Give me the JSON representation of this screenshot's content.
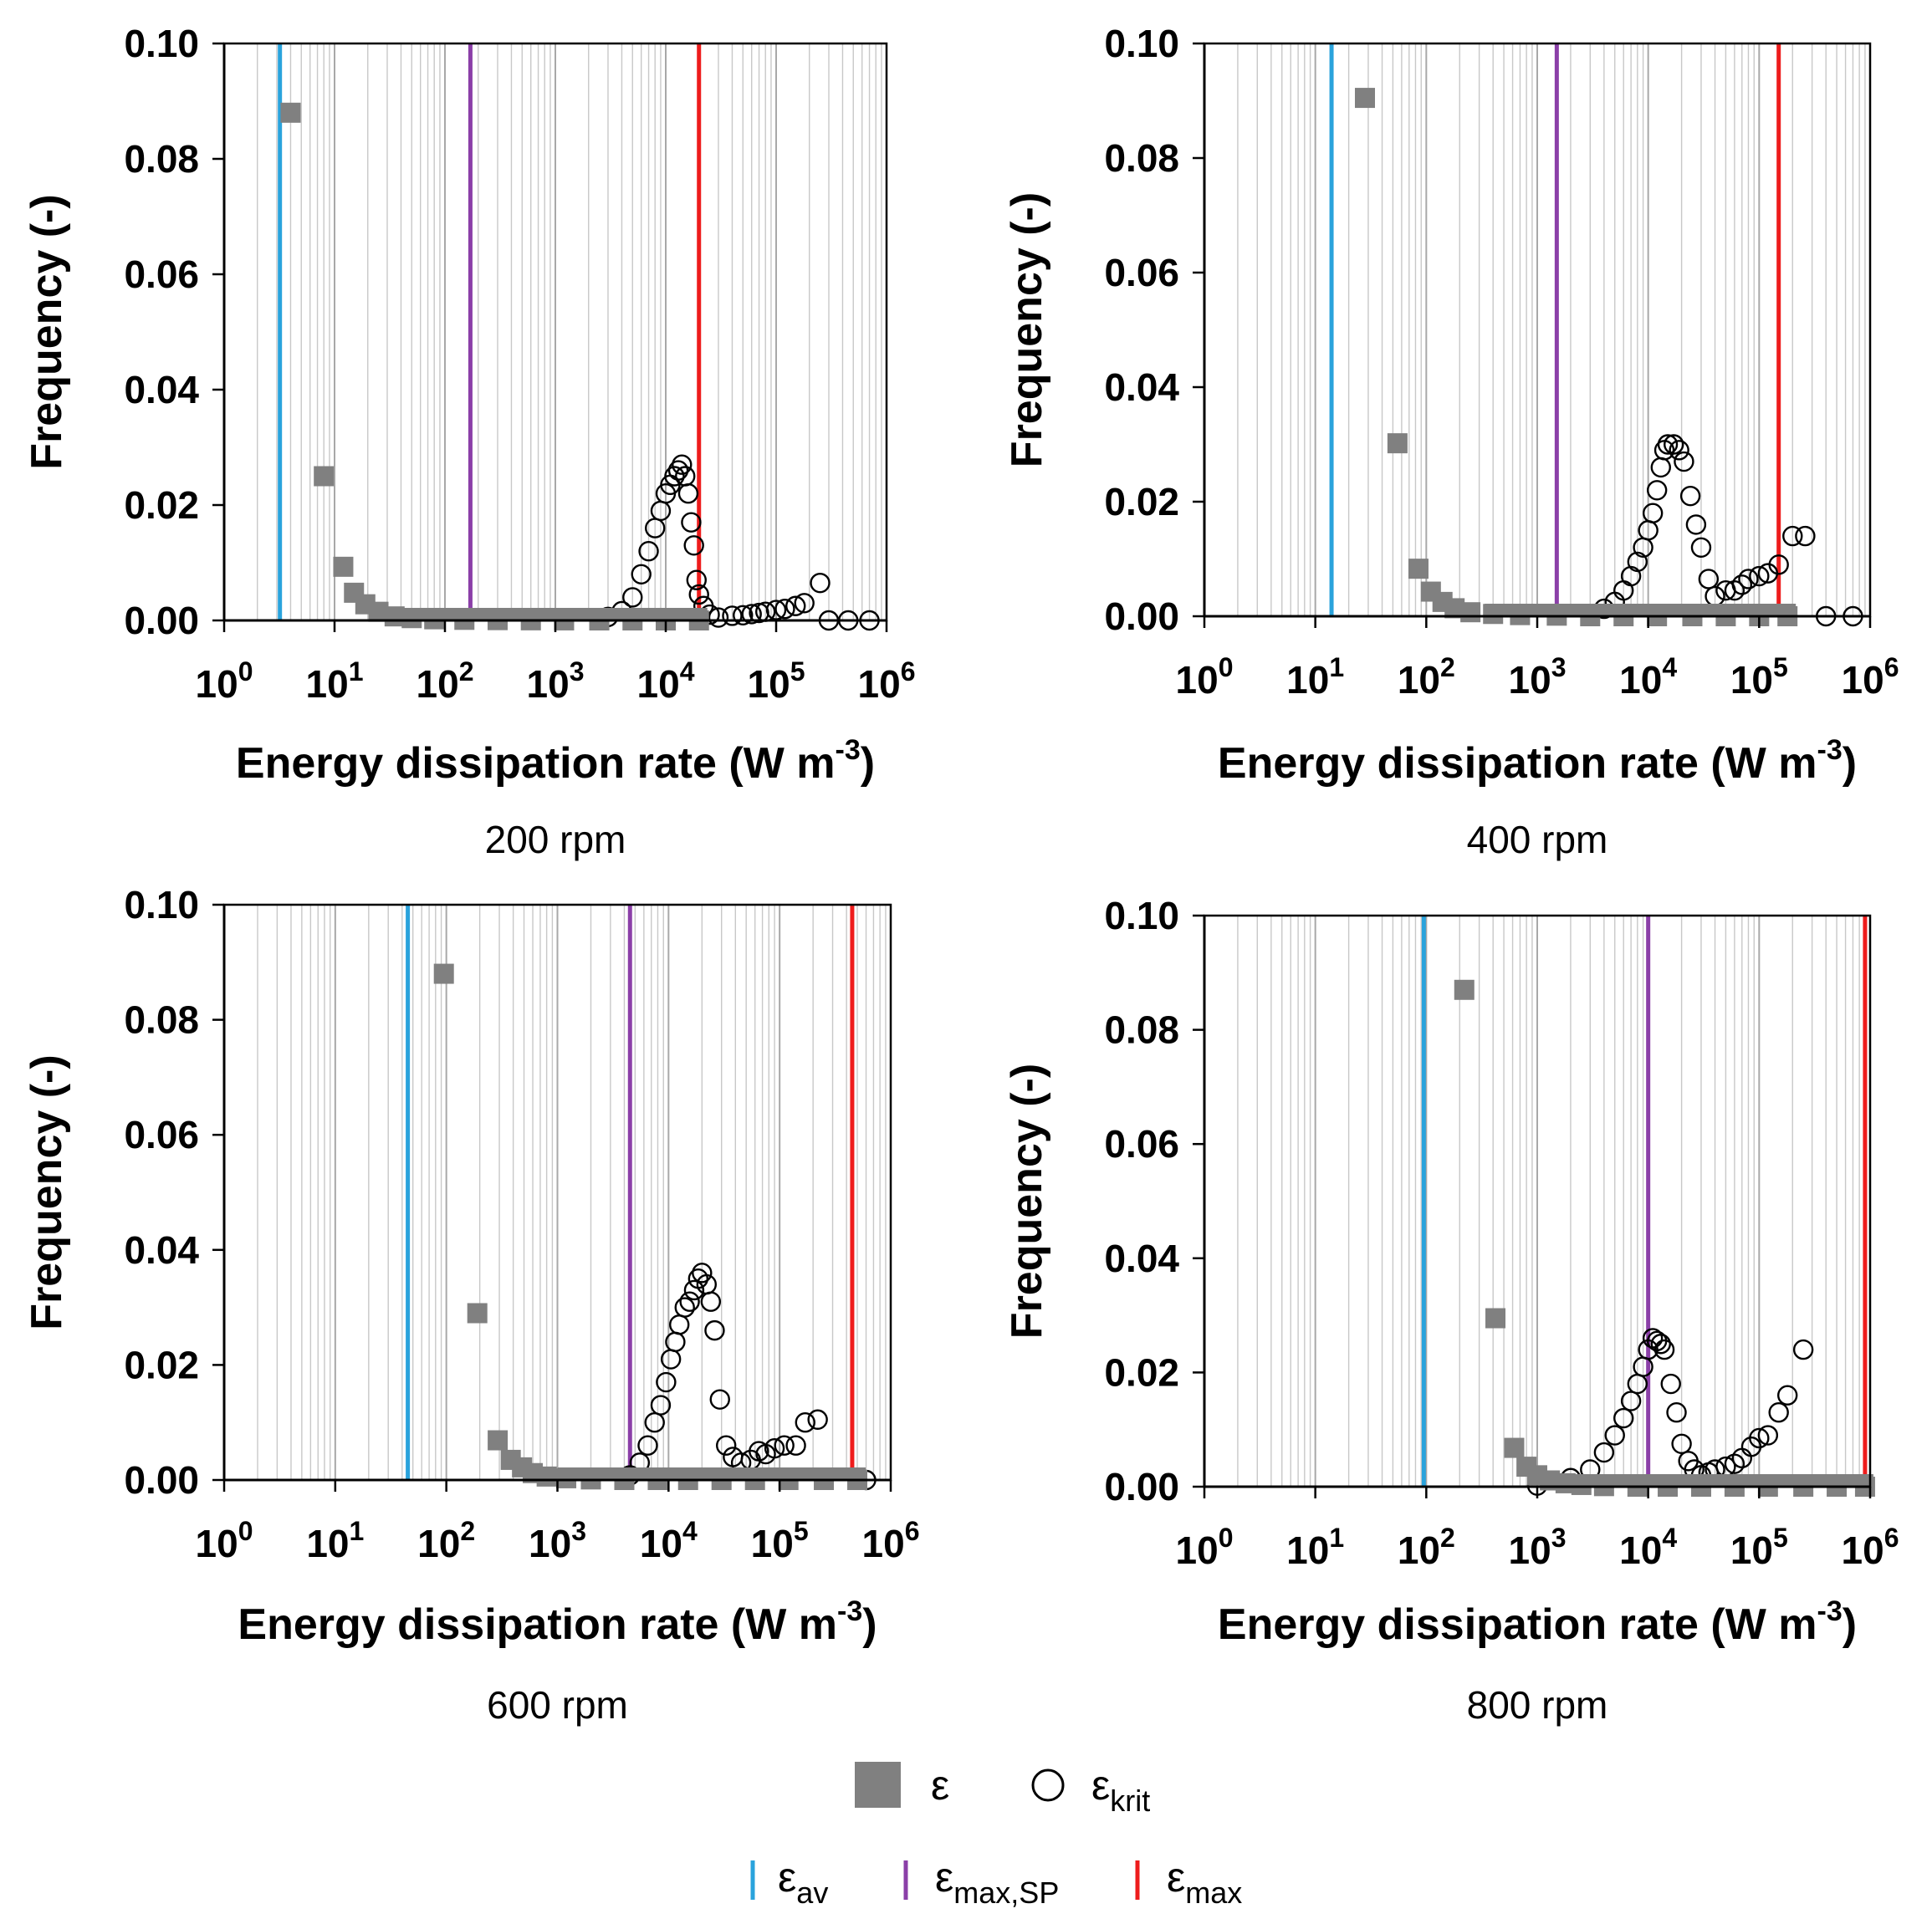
{
  "colors": {
    "epsilon": "#808080",
    "eps_krit": "#000000",
    "eps_av": "#2aa3dc",
    "eps_max_sp": "#8b3fa8",
    "eps_max": "#ee1c1c",
    "grid": "#c8c8c8"
  },
  "legend": {
    "epsilon": {
      "symbol": "ε",
      "sub": ""
    },
    "eps_krit": {
      "symbol": "ε",
      "sub": "krit"
    },
    "eps_av": {
      "symbol": "ε",
      "sub": "av"
    },
    "eps_max_sp": {
      "symbol": "ε",
      "sub": "max,SP"
    },
    "eps_max": {
      "symbol": "ε",
      "sub": "max"
    }
  },
  "chart_data": [
    {
      "type": "scatter",
      "title": "200 rpm",
      "xlabel": "Energy dissipation rate (W m-3)",
      "ylabel": "Frequency (-)",
      "xscale": "log",
      "xlim": [
        1,
        1000000
      ],
      "ylim": [
        0,
        0.1
      ],
      "x_tick_labels": [
        {
          "base": "10",
          "exp": "0"
        },
        {
          "base": "10",
          "exp": "1"
        },
        {
          "base": "10",
          "exp": "2"
        },
        {
          "base": "10",
          "exp": "3"
        },
        {
          "base": "10",
          "exp": "4"
        },
        {
          "base": "10",
          "exp": "5"
        },
        {
          "base": "10",
          "exp": "6"
        }
      ],
      "y_tick_labels": [
        "0.00",
        "0.02",
        "0.04",
        "0.06",
        "0.08",
        "0.10"
      ],
      "vlines": {
        "eps_av": 3.2,
        "eps_max_sp": 170,
        "eps_max": 20000
      },
      "series": [
        {
          "name": "ε",
          "marker": "square",
          "x": [
            4,
            8,
            12,
            15,
            19,
            25,
            35,
            50,
            80,
            150,
            300,
            600,
            1200,
            2500,
            5000,
            10000,
            20000
          ],
          "y": [
            0.088,
            0.025,
            0.0093,
            0.0048,
            0.0028,
            0.0015,
            0.0007,
            0.0004,
            0.0002,
            0.0001,
            5e-05,
            2e-05,
            1e-05,
            0,
            0,
            0,
            0
          ]
        },
        {
          "name": "ε_krit",
          "marker": "circle",
          "x": [
            3000,
            4000,
            5000,
            6000,
            7000,
            8000,
            9000,
            10000,
            11000,
            12000,
            13000,
            14000,
            15000,
            16000,
            17000,
            18000,
            19000,
            20000,
            22000,
            25000,
            30000,
            40000,
            50000,
            60000,
            70000,
            80000,
            100000,
            120000,
            150000,
            180000,
            250000,
            300000,
            450000,
            700000
          ],
          "y": [
            0.0006,
            0.0016,
            0.004,
            0.008,
            0.012,
            0.016,
            0.019,
            0.022,
            0.0235,
            0.025,
            0.026,
            0.027,
            0.025,
            0.022,
            0.017,
            0.013,
            0.007,
            0.0045,
            0.0025,
            0.001,
            0.0005,
            0.0008,
            0.0009,
            0.0011,
            0.0013,
            0.0015,
            0.0018,
            0.002,
            0.0025,
            0.003,
            0.0065,
            0,
            0,
            0
          ]
        }
      ]
    },
    {
      "type": "scatter",
      "title": "400 rpm",
      "xlabel": "Energy dissipation rate (W m-3)",
      "ylabel": "Frequency (-)",
      "xscale": "log",
      "xlim": [
        1,
        1000000
      ],
      "ylim": [
        0,
        0.1
      ],
      "x_tick_labels": [
        {
          "base": "10",
          "exp": "0"
        },
        {
          "base": "10",
          "exp": "1"
        },
        {
          "base": "10",
          "exp": "2"
        },
        {
          "base": "10",
          "exp": "3"
        },
        {
          "base": "10",
          "exp": "4"
        },
        {
          "base": "10",
          "exp": "5"
        },
        {
          "base": "10",
          "exp": "6"
        }
      ],
      "y_tick_labels": [
        "0.00",
        "0.02",
        "0.04",
        "0.06",
        "0.08",
        "0.10"
      ],
      "vlines": {
        "eps_av": 14,
        "eps_max_sp": 1500,
        "eps_max": 150000
      },
      "series": [
        {
          "name": "ε",
          "marker": "square",
          "x": [
            28,
            55,
            85,
            110,
            140,
            180,
            250,
            400,
            700,
            1500,
            3000,
            6000,
            12000,
            25000,
            50000,
            100000,
            180000
          ],
          "y": [
            0.0905,
            0.0302,
            0.0083,
            0.0043,
            0.0025,
            0.0014,
            0.0007,
            0.0004,
            0.0002,
            0.0001,
            0,
            0,
            0,
            0,
            0,
            0,
            0
          ]
        },
        {
          "name": "ε_krit",
          "marker": "circle",
          "x": [
            4000,
            5000,
            6000,
            7000,
            8000,
            9000,
            10000,
            11000,
            12000,
            13000,
            14000,
            15000,
            17000,
            19000,
            21000,
            24000,
            27000,
            30000,
            35000,
            40000,
            50000,
            60000,
            70000,
            80000,
            100000,
            120000,
            150000,
            200000,
            260000,
            400000,
            700000
          ],
          "y": [
            0.0013,
            0.0025,
            0.0045,
            0.007,
            0.0095,
            0.012,
            0.015,
            0.018,
            0.022,
            0.026,
            0.029,
            0.03,
            0.03,
            0.029,
            0.027,
            0.021,
            0.016,
            0.012,
            0.0065,
            0.0035,
            0.0045,
            0.0045,
            0.0055,
            0.0065,
            0.007,
            0.0075,
            0.009,
            0.014,
            0.014,
            0,
            0
          ]
        }
      ]
    },
    {
      "type": "scatter",
      "title": "600 rpm",
      "xlabel": "Energy dissipation rate (W m-3)",
      "ylabel": "Frequency (-)",
      "xscale": "log",
      "xlim": [
        1,
        1000000
      ],
      "ylim": [
        0,
        0.1
      ],
      "x_tick_labels": [
        {
          "base": "10",
          "exp": "0"
        },
        {
          "base": "10",
          "exp": "1"
        },
        {
          "base": "10",
          "exp": "2"
        },
        {
          "base": "10",
          "exp": "3"
        },
        {
          "base": "10",
          "exp": "4"
        },
        {
          "base": "10",
          "exp": "5"
        },
        {
          "base": "10",
          "exp": "6"
        }
      ],
      "y_tick_labels": [
        "0.00",
        "0.02",
        "0.04",
        "0.06",
        "0.08",
        "0.10"
      ],
      "vlines": {
        "eps_av": 45,
        "eps_max_sp": 4500,
        "eps_max": 450000
      },
      "series": [
        {
          "name": "ε",
          "marker": "square",
          "x": [
            95,
            190,
            290,
            380,
            480,
            600,
            800,
            1200,
            2000,
            4000,
            8000,
            15000,
            30000,
            60000,
            120000,
            250000,
            500000
          ],
          "y": [
            0.088,
            0.029,
            0.0069,
            0.0035,
            0.0022,
            0.0012,
            0.0006,
            0.0003,
            0.0001,
            0,
            0,
            0,
            0,
            0,
            0,
            0,
            0
          ]
        },
        {
          "name": "ε_krit",
          "marker": "circle",
          "x": [
            4500,
            5500,
            6500,
            7500,
            8500,
            9500,
            10500,
            11500,
            12500,
            14000,
            15500,
            17000,
            18500,
            20000,
            22000,
            24000,
            26000,
            29000,
            33000,
            38000,
            45000,
            55000,
            65000,
            75000,
            90000,
            110000,
            140000,
            170000,
            220000,
            600000
          ],
          "y": [
            0.0008,
            0.003,
            0.006,
            0.01,
            0.013,
            0.017,
            0.021,
            0.024,
            0.027,
            0.03,
            0.031,
            0.033,
            0.035,
            0.036,
            0.034,
            0.031,
            0.026,
            0.014,
            0.006,
            0.004,
            0.003,
            0.0035,
            0.005,
            0.0045,
            0.0055,
            0.006,
            0.006,
            0.01,
            0.0105,
            0
          ]
        }
      ]
    },
    {
      "type": "scatter",
      "title": "800 rpm",
      "xlabel": "Energy dissipation rate (W m-3)",
      "ylabel": "Frequency (-)",
      "xscale": "log",
      "xlim": [
        1,
        1000000
      ],
      "ylim": [
        0,
        0.1
      ],
      "x_tick_labels": [
        {
          "base": "10",
          "exp": "0"
        },
        {
          "base": "10",
          "exp": "1"
        },
        {
          "base": "10",
          "exp": "2"
        },
        {
          "base": "10",
          "exp": "3"
        },
        {
          "base": "10",
          "exp": "4"
        },
        {
          "base": "10",
          "exp": "5"
        },
        {
          "base": "10",
          "exp": "6"
        }
      ],
      "y_tick_labels": [
        "0.00",
        "0.02",
        "0.04",
        "0.06",
        "0.08",
        "0.10"
      ],
      "vlines": {
        "eps_av": 95,
        "eps_max_sp": 10000,
        "eps_max": 900000
      },
      "series": [
        {
          "name": "ε",
          "marker": "square",
          "x": [
            220,
            420,
            620,
            800,
            1000,
            1300,
            1800,
            2500,
            4000,
            8000,
            15000,
            30000,
            60000,
            120000,
            250000,
            500000,
            900000
          ],
          "y": [
            0.087,
            0.0295,
            0.0068,
            0.0035,
            0.002,
            0.0011,
            0.0006,
            0.0003,
            0.0001,
            0,
            0,
            0,
            0,
            0,
            0,
            0,
            0
          ]
        },
        {
          "name": "ε_krit",
          "marker": "circle",
          "x": [
            1000,
            2000,
            3000,
            4000,
            5000,
            6000,
            7000,
            8000,
            9000,
            10000,
            11000,
            12000,
            13000,
            14000,
            16000,
            18000,
            20000,
            23000,
            26000,
            30000,
            35000,
            40000,
            50000,
            60000,
            70000,
            85000,
            100000,
            120000,
            150000,
            180000,
            250000
          ],
          "y": [
            0.0002,
            0.0015,
            0.003,
            0.006,
            0.009,
            0.012,
            0.015,
            0.018,
            0.021,
            0.024,
            0.026,
            0.0255,
            0.025,
            0.024,
            0.018,
            0.013,
            0.0075,
            0.0045,
            0.003,
            0.002,
            0.0025,
            0.003,
            0.0035,
            0.004,
            0.005,
            0.007,
            0.0085,
            0.009,
            0.013,
            0.016,
            0.024
          ]
        }
      ]
    }
  ]
}
